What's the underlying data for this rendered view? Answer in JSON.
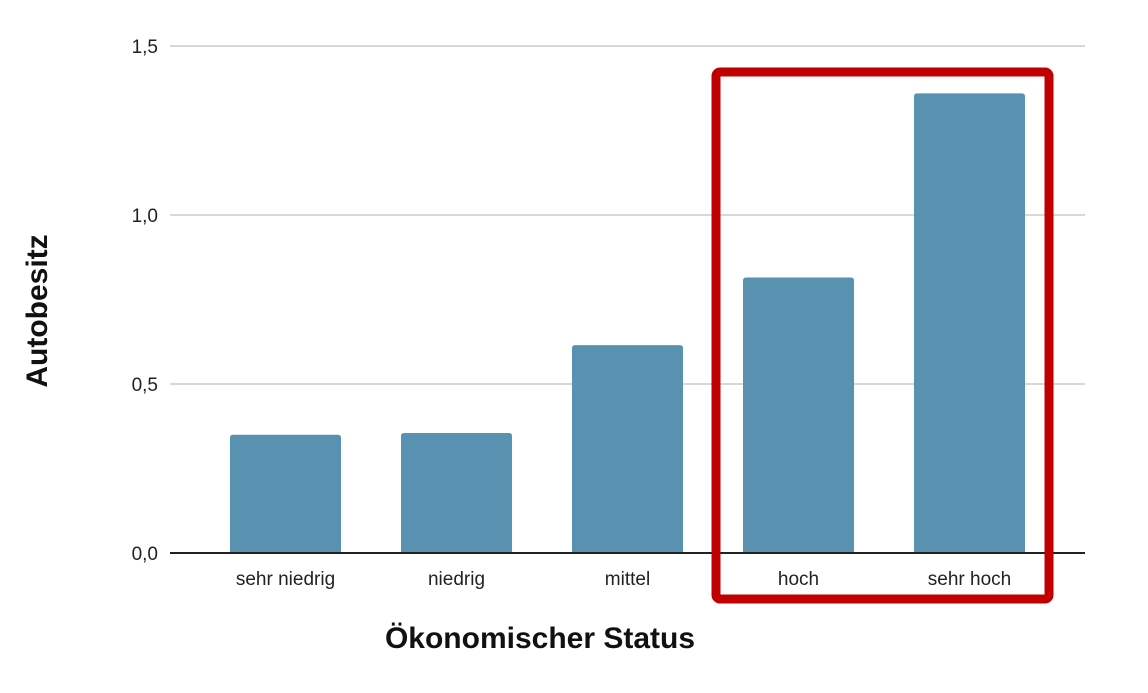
{
  "chart_data": {
    "type": "bar",
    "title": "",
    "xlabel": "Ökonomischer Status",
    "ylabel": "Autobesitz",
    "categories": [
      "sehr niedrig",
      "niedrig",
      "mittel",
      "hoch",
      "sehr hoch"
    ],
    "values": [
      0.35,
      0.355,
      0.615,
      0.815,
      1.36
    ],
    "ylim": [
      0,
      1.5
    ],
    "yticks": [
      0,
      0.5,
      1.0,
      1.5
    ],
    "ytick_labels": [
      "0,0",
      "0,5",
      "1,0",
      "1,5"
    ],
    "grid": true,
    "legend": "none",
    "highlight": {
      "categories": [
        "hoch",
        "sehr hoch"
      ],
      "style": "box outline"
    }
  },
  "colors": {
    "bar": "#5892b0",
    "grid": "#cccccc",
    "baseline": "#222222",
    "highlight": "#c00000",
    "text": "#222222"
  }
}
